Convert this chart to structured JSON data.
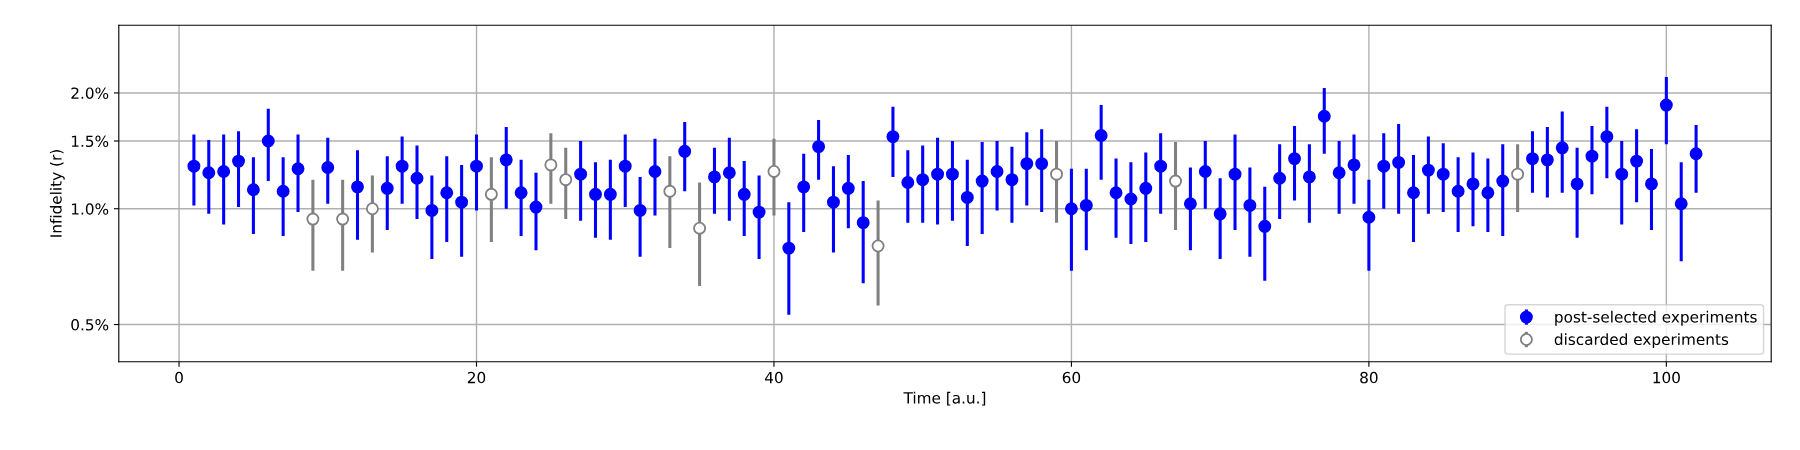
{
  "chart_data": {
    "type": "scatter",
    "xlabel": "Time [a.u.]",
    "ylabel": "Infidelity (r)",
    "log": "y",
    "xlim": [
      -4.05,
      107.05
    ],
    "xticks": [
      0,
      20,
      40,
      60,
      80,
      100
    ],
    "ylim": [
      0.4,
      3.0
    ],
    "yticks": [
      {
        "value": 0.5,
        "label": "0.5%"
      },
      {
        "value": 1.0,
        "label": "1.0%"
      },
      {
        "value": 1.5,
        "label": "1.5%"
      },
      {
        "value": 2.0,
        "label": "2.0%"
      }
    ],
    "grid": true,
    "legend": "bottom right",
    "marker": "circle",
    "series": [
      {
        "name": "post-selected experiments",
        "color": "#0000ff",
        "x": [
          1,
          2,
          3,
          4,
          5,
          6,
          7,
          8,
          10,
          12,
          14,
          15,
          16,
          17,
          18,
          19,
          20,
          22,
          23,
          24,
          27,
          28,
          29,
          30,
          31,
          32,
          34,
          36,
          37,
          38,
          39,
          41,
          42,
          43,
          44,
          45,
          46,
          48,
          49,
          50,
          51,
          52,
          53,
          54,
          55,
          56,
          57,
          58,
          60,
          61,
          62,
          63,
          64,
          65,
          66,
          68,
          69,
          70,
          71,
          72,
          73,
          74,
          75,
          76,
          77,
          78,
          79,
          80,
          81,
          82,
          83,
          84,
          85,
          86,
          87,
          88,
          89,
          91,
          92,
          93,
          94,
          95,
          96,
          97,
          98,
          99,
          100,
          101,
          102
        ],
        "values": [
          1.29,
          1.24,
          1.25,
          1.33,
          1.12,
          1.5,
          1.11,
          1.27,
          1.28,
          1.14,
          1.13,
          1.29,
          1.2,
          0.99,
          1.1,
          1.04,
          1.29,
          1.34,
          1.1,
          1.01,
          1.23,
          1.09,
          1.09,
          1.29,
          0.99,
          1.25,
          1.41,
          1.21,
          1.24,
          1.09,
          0.98,
          0.79,
          1.14,
          1.45,
          1.04,
          1.13,
          0.92,
          1.54,
          1.17,
          1.19,
          1.23,
          1.23,
          1.07,
          1.18,
          1.25,
          1.19,
          1.31,
          1.31,
          1.0,
          1.02,
          1.55,
          1.1,
          1.06,
          1.13,
          1.29,
          1.03,
          1.25,
          0.97,
          1.23,
          1.02,
          0.9,
          1.2,
          1.35,
          1.21,
          1.74,
          1.24,
          1.3,
          0.95,
          1.29,
          1.32,
          1.1,
          1.26,
          1.23,
          1.11,
          1.16,
          1.1,
          1.18,
          1.35,
          1.34,
          1.44,
          1.16,
          1.37,
          1.54,
          1.23,
          1.33,
          1.16,
          1.86,
          1.03,
          1.39
        ],
        "errors": [
          [
            1.02,
            1.56
          ],
          [
            0.97,
            1.51
          ],
          [
            0.91,
            1.56
          ],
          [
            1.01,
            1.59
          ],
          [
            0.86,
            1.36
          ],
          [
            1.18,
            1.82
          ],
          [
            0.85,
            1.36
          ],
          [
            0.98,
            1.56
          ],
          [
            1.03,
            1.53
          ],
          [
            0.83,
            1.42
          ],
          [
            0.88,
            1.37
          ],
          [
            1.03,
            1.54
          ],
          [
            0.94,
            1.46
          ],
          [
            0.74,
            1.22
          ],
          [
            0.82,
            1.37
          ],
          [
            0.75,
            1.3
          ],
          [
            0.99,
            1.56
          ],
          [
            1.0,
            1.63
          ],
          [
            0.85,
            1.34
          ],
          [
            0.78,
            1.24
          ],
          [
            0.93,
            1.5
          ],
          [
            0.84,
            1.32
          ],
          [
            0.83,
            1.34
          ],
          [
            1.01,
            1.56
          ],
          [
            0.75,
            1.21
          ],
          [
            0.96,
            1.52
          ],
          [
            1.11,
            1.68
          ],
          [
            0.97,
            1.44
          ],
          [
            0.93,
            1.53
          ],
          [
            0.85,
            1.33
          ],
          [
            0.74,
            1.22
          ],
          [
            0.53,
            1.04
          ],
          [
            0.87,
            1.39
          ],
          [
            1.19,
            1.7
          ],
          [
            0.77,
            1.29
          ],
          [
            0.89,
            1.38
          ],
          [
            0.64,
            1.18
          ],
          [
            1.21,
            1.84
          ],
          [
            0.92,
            1.42
          ],
          [
            0.92,
            1.46
          ],
          [
            0.91,
            1.53
          ],
          [
            0.93,
            1.5
          ],
          [
            0.8,
            1.34
          ],
          [
            0.86,
            1.49
          ],
          [
            0.99,
            1.5
          ],
          [
            0.92,
            1.45
          ],
          [
            1.02,
            1.58
          ],
          [
            0.98,
            1.61
          ],
          [
            0.69,
            1.27
          ],
          [
            0.78,
            1.27
          ],
          [
            1.19,
            1.86
          ],
          [
            0.84,
            1.35
          ],
          [
            0.81,
            1.32
          ],
          [
            0.82,
            1.4
          ],
          [
            0.97,
            1.57
          ],
          [
            0.78,
            1.28
          ],
          [
            1.0,
            1.5
          ],
          [
            0.74,
            1.2
          ],
          [
            0.88,
            1.56
          ],
          [
            0.75,
            1.28
          ],
          [
            0.65,
            1.14
          ],
          [
            0.94,
            1.47
          ],
          [
            1.05,
            1.64
          ],
          [
            0.92,
            1.47
          ],
          [
            1.39,
            2.06
          ],
          [
            0.97,
            1.5
          ],
          [
            1.03,
            1.56
          ],
          [
            0.69,
            1.19
          ],
          [
            1.0,
            1.57
          ],
          [
            0.97,
            1.66
          ],
          [
            0.82,
            1.38
          ],
          [
            0.97,
            1.54
          ],
          [
            0.98,
            1.48
          ],
          [
            0.87,
            1.36
          ],
          [
            0.9,
            1.4
          ],
          [
            0.87,
            1.35
          ],
          [
            0.85,
            1.47
          ],
          [
            1.1,
            1.59
          ],
          [
            1.07,
            1.63
          ],
          [
            1.1,
            1.79
          ],
          [
            0.84,
            1.44
          ],
          [
            1.09,
            1.64
          ],
          [
            1.2,
            1.84
          ],
          [
            0.91,
            1.5
          ],
          [
            1.04,
            1.61
          ],
          [
            0.88,
            1.43
          ],
          [
            1.47,
            2.2
          ],
          [
            0.73,
            1.32
          ],
          [
            1.1,
            1.65
          ]
        ]
      },
      {
        "name": "discarded experiments",
        "color": "#808080",
        "x": [
          9,
          11,
          13,
          21,
          25,
          26,
          33,
          35,
          40,
          47,
          59,
          67,
          90
        ],
        "values": [
          0.94,
          0.94,
          1.0,
          1.09,
          1.3,
          1.19,
          1.11,
          0.89,
          1.25,
          0.8,
          1.23,
          1.18,
          1.23
        ],
        "errors": [
          [
            0.69,
            1.19
          ],
          [
            0.69,
            1.19
          ],
          [
            0.77,
            1.22
          ],
          [
            0.82,
            1.36
          ],
          [
            1.03,
            1.57
          ],
          [
            0.94,
            1.44
          ],
          [
            0.79,
            1.37
          ],
          [
            0.63,
            1.17
          ],
          [
            0.96,
            1.52
          ],
          [
            0.56,
            1.05
          ],
          [
            0.92,
            1.5
          ],
          [
            0.88,
            1.49
          ],
          [
            0.98,
            1.47
          ]
        ]
      }
    ]
  }
}
